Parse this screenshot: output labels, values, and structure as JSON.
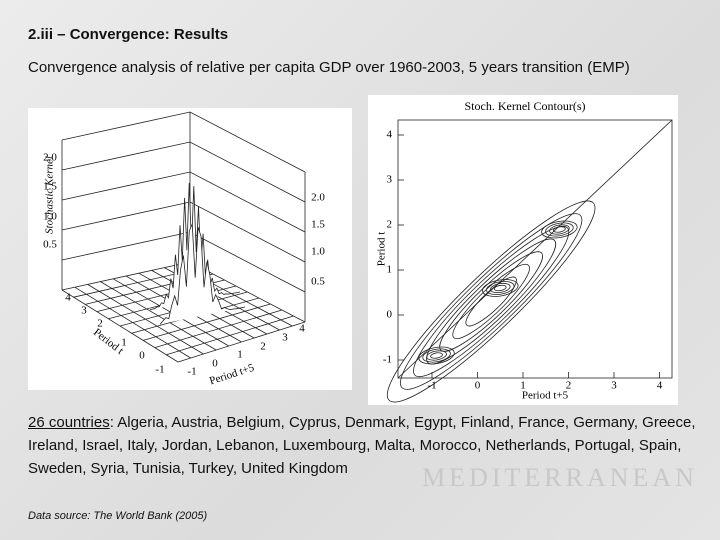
{
  "header": {
    "title": "2.iii – Convergence: Results",
    "subtitle": "Convergence analysis of relative per capita GDP over 1960-2003, 5 years transition (EMP)"
  },
  "left_figure": {
    "z_label": "Stochastic Kernel",
    "z_ticks": [
      "0.5",
      "1.0",
      "1.5",
      "2.0"
    ],
    "x_label": "Period t",
    "x_ticks": [
      "4",
      "3",
      "2",
      "1",
      "0",
      "-1"
    ],
    "y_label": "Period t+5",
    "y_ticks": [
      "-1",
      "0",
      "1",
      "2",
      "3",
      "4"
    ]
  },
  "right_figure": {
    "title": "Stoch. Kernel Contour(s)",
    "y_label": "Period t",
    "y_ticks": [
      "-1",
      "0",
      "1",
      "2",
      "3",
      "4"
    ],
    "x_label": "Period t+5",
    "x_ticks": [
      "-1",
      "0",
      "1",
      "2",
      "3",
      "4"
    ]
  },
  "body": {
    "countries_label": "26 countries",
    "countries_list": ": Algeria, Austria, Belgium, Cyprus, Denmark, Egypt, Finland, France, Germany, Greece, Ireland, Israel, Italy, Jordan, Lebanon, Luxembourg, Malta, Morocco, Netherlands, Portugal, Spain, Sweden, Syria, Tunisia, Turkey, United Kingdom",
    "source": "Data source: The World Bank (2005)"
  },
  "background": {
    "map_label": "MEDITERRANEAN"
  }
}
